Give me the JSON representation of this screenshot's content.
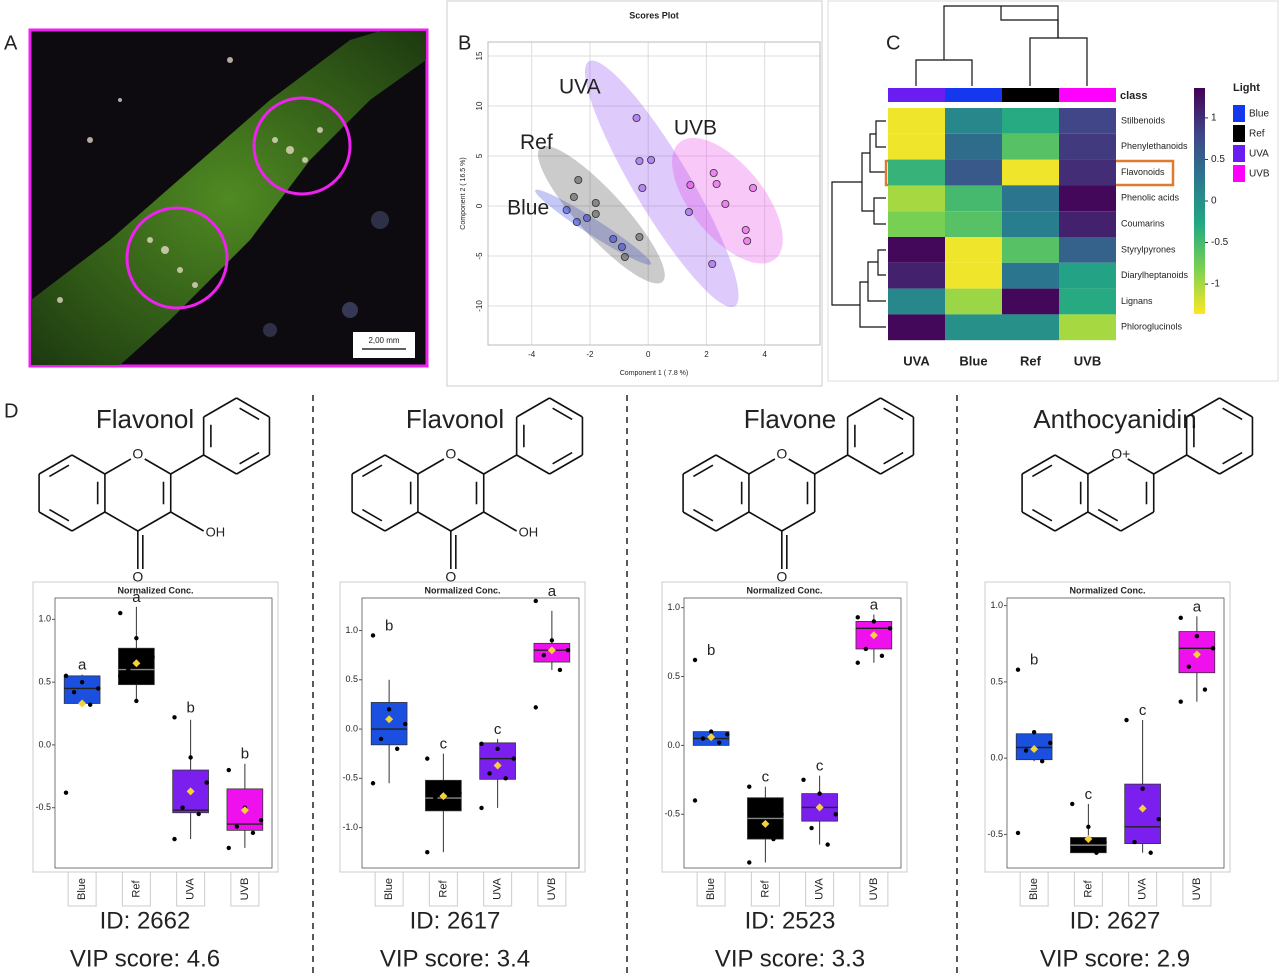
{
  "panel_labels": [
    "A",
    "B",
    "C",
    "D"
  ],
  "photo": {
    "scale_bar_label": "2,00 mm"
  },
  "chart_data": [
    {
      "type": "scatter",
      "title": "Scores Plot",
      "x_label": "Component 1 ( 7.8 %)",
      "y_label": "Component 2 ( 16.5 %)",
      "xlim": [
        -5.5,
        5.9
      ],
      "ylim": [
        -13.9,
        16.4
      ],
      "xticks": [
        -4,
        -2,
        0,
        2,
        4
      ],
      "yticks": [
        15,
        10,
        5,
        0,
        -5,
        -10
      ],
      "grid": true,
      "series": [
        {
          "name": "Blue",
          "color": "#2b3be0",
          "x": [
            -2.8,
            -2.45,
            -2.1,
            -1.2,
            -0.9
          ],
          "values": [
            -0.4,
            -1.6,
            -1.2,
            -3.3,
            -4.1
          ]
        },
        {
          "name": "Ref",
          "color": "#444444",
          "x": [
            -2.4,
            -2.55,
            -1.8,
            -1.8,
            -0.3,
            -0.8
          ],
          "values": [
            2.6,
            0.9,
            0.3,
            -0.8,
            -3.1,
            -5.1
          ]
        },
        {
          "name": "UVA",
          "color": "#8a3ff0",
          "x": [
            -0.4,
            -0.3,
            0.1,
            -0.2,
            1.4,
            2.2
          ],
          "values": [
            8.8,
            4.5,
            4.6,
            1.8,
            -0.6,
            -5.8
          ]
        },
        {
          "name": "UVB",
          "color": "#e53de5",
          "x": [
            1.45,
            2.25,
            2.35,
            2.65,
            3.6,
            3.35,
            3.4
          ],
          "values": [
            2.1,
            3.3,
            2.2,
            0.2,
            1.8,
            -2.4,
            -3.5
          ]
        }
      ]
    },
    {
      "type": "heatmap",
      "columns": [
        "UVA",
        "Blue",
        "Ref",
        "UVB"
      ],
      "rows": [
        "Stilbenoids",
        "Phenylethanoids",
        "Flavonoids",
        "Phenolic acids",
        "Coumarins",
        "Styrylpyrones",
        "Diarylheptanoids",
        "Lignans",
        "Phloroglucinols"
      ],
      "values": [
        [
          -1.3,
          0.1,
          -0.3,
          0.8
        ],
        [
          -1.3,
          0.4,
          -0.6,
          0.9
        ],
        [
          -0.4,
          0.6,
          -1.3,
          1.0
        ],
        [
          -1.0,
          -0.5,
          0.3,
          1.3
        ],
        [
          -0.8,
          -0.6,
          0.2,
          1.1
        ],
        [
          1.3,
          -1.3,
          -0.6,
          0.5
        ],
        [
          1.1,
          -1.3,
          0.3,
          -0.2
        ],
        [
          0.1,
          -0.95,
          1.3,
          -0.3
        ],
        [
          1.3,
          0.0,
          0.0,
          -1.0
        ]
      ],
      "class_label": "class",
      "legend_title": "Light",
      "legend": [
        {
          "name": "Blue",
          "color": "#1538ee"
        },
        {
          "name": "Ref",
          "color": "#000000"
        },
        {
          "name": "UVA",
          "color": "#6a1df0"
        },
        {
          "name": "UVB",
          "color": "#ff00ff"
        }
      ],
      "clim": [
        -1.36,
        1.36
      ],
      "cticks": [
        1,
        0.5,
        0,
        -0.5,
        -1
      ],
      "colorscale": [
        "#fde725",
        "#7ad151",
        "#22a884",
        "#2a788e",
        "#414487",
        "#440154"
      ]
    },
    {
      "type": "box",
      "compound": "Flavonol",
      "atoms": [
        "O",
        "O",
        "OH"
      ],
      "title": "Normalized Conc.",
      "categories": [
        "Blue",
        "Ref",
        "UVA",
        "UVB"
      ],
      "colors": [
        "#1a4fe0",
        "#000000",
        "#7b1fef",
        "#ee11ee"
      ],
      "ylim": [
        -0.98,
        1.17
      ],
      "yticks": [
        {
          "value": 1,
          "label": "1.0"
        },
        0.5,
        {
          "value": 0,
          "label": "0.0"
        },
        -0.5
      ],
      "boxes": [
        {
          "low": 0.31,
          "q1": 0.33,
          "median": 0.45,
          "q3": 0.55,
          "high": 0.56,
          "mean": 0.33,
          "points": [
            0.55,
            0.5,
            0.45,
            0.42,
            0.32,
            -0.38
          ],
          "letter": "a"
        },
        {
          "low": 0.35,
          "q1": 0.48,
          "median": 0.6,
          "q3": 0.77,
          "high": 1.1,
          "mean": 0.65,
          "points": [
            1.05,
            0.85,
            0.7,
            0.6,
            0.55,
            0.55,
            0.35
          ],
          "letter": "a"
        },
        {
          "low": -0.75,
          "q1": -0.54,
          "median": -0.52,
          "q3": -0.2,
          "high": 0.2,
          "mean": -0.37,
          "points": [
            0.22,
            -0.1,
            -0.3,
            -0.5,
            -0.55,
            -0.75
          ],
          "letter": "b"
        },
        {
          "low": -0.82,
          "q1": -0.68,
          "median": -0.63,
          "q3": -0.35,
          "high": -0.15,
          "mean": -0.52,
          "points": [
            -0.2,
            -0.5,
            -0.6,
            -0.65,
            -0.7,
            -0.82
          ],
          "letter": "b"
        }
      ],
      "id_label": "ID: 2662",
      "vip_label": "VIP score: 4.6"
    },
    {
      "type": "box",
      "compound": "Flavonol",
      "atoms": [
        "O",
        "O",
        "OH"
      ],
      "title": "Normalized Conc.",
      "categories": [
        "Blue",
        "Ref",
        "UVA",
        "UVB"
      ],
      "colors": [
        "#1a4fe0",
        "#000000",
        "#7b1fef",
        "#ee11ee"
      ],
      "ylim": [
        -1.41,
        1.33
      ],
      "yticks": [
        {
          "value": 1,
          "label": "1.0"
        },
        0.5,
        {
          "value": 0,
          "label": "0.0"
        },
        -0.5,
        {
          "value": -1,
          "label": "-1.0"
        }
      ],
      "boxes": [
        {
          "low": -0.55,
          "q1": -0.16,
          "median": 0.0,
          "q3": 0.27,
          "high": 0.5,
          "mean": 0.1,
          "points": [
            0.95,
            0.2,
            0.05,
            -0.1,
            -0.2,
            -0.55
          ],
          "letter": "b"
        },
        {
          "low": -1.25,
          "q1": -0.83,
          "median": -0.7,
          "q3": -0.52,
          "high": -0.25,
          "mean": -0.68,
          "points": [
            -0.3,
            -0.6,
            -0.65,
            -0.7,
            -0.8,
            -1.25
          ],
          "letter": "c"
        },
        {
          "low": -0.8,
          "q1": -0.51,
          "median": -0.3,
          "q3": -0.14,
          "high": -0.1,
          "mean": -0.37,
          "points": [
            -0.15,
            -0.2,
            -0.3,
            -0.45,
            -0.5,
            -0.8
          ],
          "letter": "c"
        },
        {
          "low": 0.6,
          "q1": 0.68,
          "median": 0.8,
          "q3": 0.87,
          "high": 1.2,
          "mean": 0.8,
          "points": [
            1.3,
            0.9,
            0.8,
            0.75,
            0.6,
            0.22
          ],
          "letter": "a"
        }
      ],
      "id_label": "ID: 2617",
      "vip_label": "VIP score: 3.4"
    },
    {
      "type": "box",
      "compound": "Flavone",
      "atoms": [
        "O",
        "O"
      ],
      "title": "Normalized Conc.",
      "categories": [
        "Blue",
        "Ref",
        "UVA",
        "UVB"
      ],
      "colors": [
        "#1a4fe0",
        "#000000",
        "#7b1fef",
        "#ee11ee"
      ],
      "ylim": [
        -0.89,
        1.07
      ],
      "yticks": [
        {
          "value": 1,
          "label": "1.0"
        },
        0.5,
        {
          "value": 0,
          "label": "0.0"
        },
        -0.5
      ],
      "boxes": [
        {
          "low": 0.0,
          "q1": 0.0,
          "median": 0.05,
          "q3": 0.1,
          "high": 0.1,
          "mean": 0.06,
          "points": [
            0.62,
            0.1,
            0.08,
            0.05,
            0.02,
            -0.4
          ],
          "letter": "b"
        },
        {
          "low": -0.85,
          "q1": -0.68,
          "median": -0.53,
          "q3": -0.38,
          "high": -0.3,
          "mean": -0.57,
          "points": [
            -0.3,
            -0.4,
            -0.5,
            -0.6,
            -0.68,
            -0.85
          ],
          "letter": "c"
        },
        {
          "low": -0.72,
          "q1": -0.55,
          "median": -0.45,
          "q3": -0.35,
          "high": -0.22,
          "mean": -0.45,
          "points": [
            -0.25,
            -0.35,
            -0.5,
            -0.6,
            -0.72
          ],
          "letter": "c"
        },
        {
          "low": 0.6,
          "q1": 0.7,
          "median": 0.85,
          "q3": 0.9,
          "high": 0.95,
          "mean": 0.8,
          "points": [
            0.93,
            0.9,
            0.85,
            0.7,
            0.65,
            0.6
          ],
          "letter": "a"
        }
      ],
      "id_label": "ID: 2523",
      "vip_label": "VIP score: 3.3"
    },
    {
      "type": "box",
      "compound": "Anthocyanidin",
      "atoms": [
        "O+"
      ],
      "title": "Normalized Conc.",
      "categories": [
        "Blue",
        "Ref",
        "UVA",
        "UVB"
      ],
      "colors": [
        "#1a4fe0",
        "#000000",
        "#7b1fef",
        "#ee11ee"
      ],
      "ylim": [
        -0.72,
        1.05
      ],
      "yticks": [
        {
          "value": 1,
          "label": "1.0"
        },
        0.5,
        {
          "value": 0,
          "label": "0.0"
        },
        -0.5
      ],
      "boxes": [
        {
          "low": -0.02,
          "q1": -0.01,
          "median": 0.07,
          "q3": 0.16,
          "high": 0.17,
          "mean": 0.06,
          "points": [
            0.58,
            0.17,
            0.1,
            0.05,
            -0.02,
            -0.49
          ],
          "letter": "b"
        },
        {
          "low": -0.62,
          "q1": -0.62,
          "median": -0.57,
          "q3": -0.52,
          "high": -0.3,
          "mean": -0.53,
          "points": [
            -0.3,
            -0.45,
            -0.55,
            -0.6,
            -0.62
          ],
          "letter": "c"
        },
        {
          "low": -0.62,
          "q1": -0.56,
          "median": -0.45,
          "q3": -0.17,
          "high": 0.25,
          "mean": -0.33,
          "points": [
            0.25,
            -0.2,
            -0.4,
            -0.55,
            -0.62
          ],
          "letter": "c"
        },
        {
          "low": 0.37,
          "q1": 0.56,
          "median": 0.72,
          "q3": 0.83,
          "high": 0.93,
          "mean": 0.68,
          "points": [
            0.92,
            0.8,
            0.72,
            0.6,
            0.45,
            0.37
          ],
          "letter": "a"
        }
      ],
      "id_label": "ID: 2627",
      "vip_label": "VIP score: 2.9"
    }
  ]
}
